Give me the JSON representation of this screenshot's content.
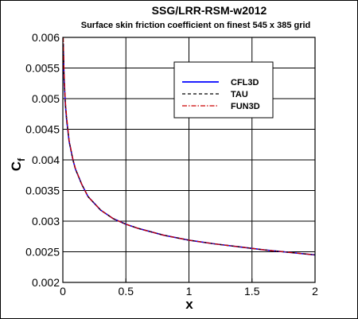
{
  "chart_data": {
    "type": "line",
    "title": "SSG/LRR-RSM-w2012",
    "subtitle": "Surface skin friction coefficient on finest 545 x 385 grid",
    "xlabel": "x",
    "ylabel_main": "C",
    "ylabel_sub": "f",
    "xlim": [
      0,
      2
    ],
    "ylim": [
      0.002,
      0.006
    ],
    "x_ticks": [
      0,
      0.5,
      1,
      1.5,
      2
    ],
    "x_tick_labels": [
      "0",
      "0.5",
      "1",
      "1.5",
      "2"
    ],
    "y_ticks": [
      0.002,
      0.0025,
      0.003,
      0.0035,
      0.004,
      0.0045,
      0.005,
      0.0055,
      0.006
    ],
    "y_tick_labels": [
      "0.002",
      "0.0025",
      "0.003",
      "0.0035",
      "0.004",
      "0.0045",
      "0.005",
      "0.0055",
      "0.006"
    ],
    "grid": true,
    "legend_position": "top-right",
    "x": [
      0.003,
      0.01,
      0.02,
      0.03,
      0.05,
      0.08,
      0.1,
      0.15,
      0.2,
      0.3,
      0.4,
      0.5,
      0.6,
      0.8,
      1.0,
      1.2,
      1.4,
      1.6,
      1.8,
      2.0
    ],
    "series": [
      {
        "name": "CFL3D",
        "color": "#0000ff",
        "style": "solid",
        "values": [
          0.0059,
          0.0053,
          0.0049,
          0.00465,
          0.0043,
          0.004,
          0.00385,
          0.0036,
          0.0034,
          0.00318,
          0.00304,
          0.00295,
          0.00288,
          0.00277,
          0.00269,
          0.00263,
          0.00258,
          0.00253,
          0.00249,
          0.00245
        ]
      },
      {
        "name": "TAU",
        "color": "#000000",
        "style": "dashed",
        "values": [
          0.0059,
          0.0053,
          0.0049,
          0.00465,
          0.0043,
          0.004,
          0.00385,
          0.0036,
          0.0034,
          0.00318,
          0.00304,
          0.00295,
          0.00288,
          0.00277,
          0.00269,
          0.00263,
          0.00258,
          0.00253,
          0.00249,
          0.00245
        ]
      },
      {
        "name": "FUN3D",
        "color": "#cc0000",
        "style": "dashdot",
        "values": [
          0.006,
          0.0054,
          0.00495,
          0.0047,
          0.00432,
          0.00401,
          0.00386,
          0.0036,
          0.0034,
          0.00318,
          0.00304,
          0.00295,
          0.00288,
          0.00277,
          0.00269,
          0.00263,
          0.00258,
          0.00253,
          0.00249,
          0.00245
        ]
      }
    ]
  }
}
